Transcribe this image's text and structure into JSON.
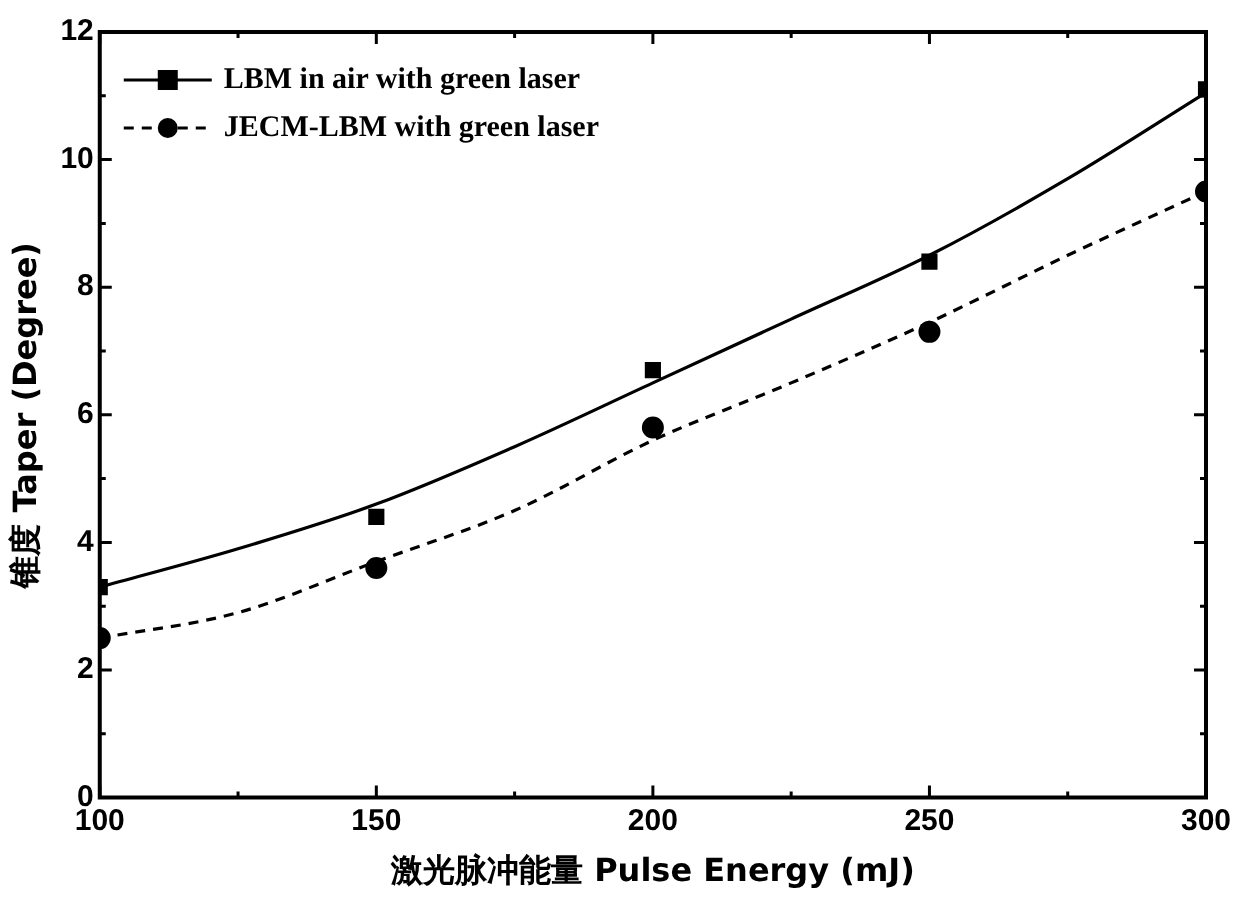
{
  "chart_data": {
    "type": "scatter",
    "xlabel": "激光脉冲能量 Pulse Energy (mJ)",
    "ylabel": "锥度 Taper (Degree)",
    "xlim": [
      100,
      300
    ],
    "xticks": [
      100,
      150,
      200,
      250,
      300
    ],
    "ylim": [
      0,
      12
    ],
    "yticks": [
      0,
      2,
      4,
      6,
      8,
      10,
      12
    ],
    "grid": false,
    "legend": "top left",
    "series": [
      {
        "name": "LBM in air with green laser",
        "color": "#000000",
        "marker": "square",
        "line_style": "solid",
        "x": [
          100,
          150,
          200,
          250,
          300
        ],
        "values": [
          3.3,
          4.4,
          6.7,
          8.4,
          11.1
        ]
      },
      {
        "name": "JECM-LBM with green laser",
        "color": "#000000",
        "marker": "circle",
        "line_style": "dashed",
        "x": [
          100,
          150,
          200,
          250,
          300
        ],
        "values": [
          2.5,
          3.6,
          5.8,
          7.3,
          9.5
        ]
      },
      {
        "type": "line",
        "color": "#000000",
        "marker": "none",
        "line_style": "solid",
        "x": [
          100,
          125,
          150,
          175,
          200,
          225,
          250,
          275,
          300
        ],
        "values": [
          3.3,
          3.9,
          4.6,
          5.5,
          6.5,
          7.5,
          8.5,
          9.7,
          11.05
        ]
      },
      {
        "type": "line",
        "color": "#000000",
        "marker": "none",
        "line_style": "dashed",
        "x": [
          100,
          125,
          150,
          175,
          200,
          225,
          250,
          275,
          300
        ],
        "values": [
          2.5,
          2.9,
          3.7,
          4.5,
          5.6,
          6.5,
          7.45,
          8.5,
          9.5
        ]
      }
    ]
  }
}
